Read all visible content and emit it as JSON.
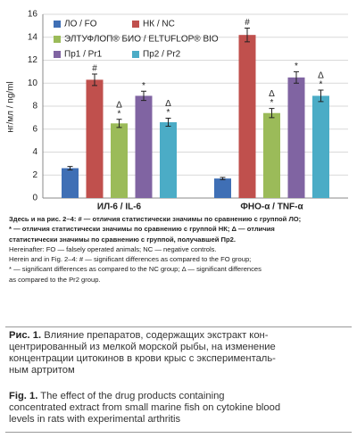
{
  "chart_data": {
    "type": "bar",
    "y_label": "нг/мл / ng/ml",
    "categories": [
      "ИЛ-6 / IL-6",
      "ФНО-α / TNF-α"
    ],
    "ylim": [
      0,
      16
    ],
    "yticks": [
      0,
      2,
      4,
      6,
      8,
      10,
      12,
      14,
      16
    ],
    "grid": true,
    "series": [
      {
        "name": "ЛО / FO",
        "color": "#3f6fb5",
        "values": [
          2.6,
          1.7
        ],
        "errors": [
          0.15,
          0.1
        ],
        "annotations": [
          [],
          []
        ]
      },
      {
        "name": "НК / NC",
        "color": "#c0504d",
        "values": [
          10.3,
          14.2
        ],
        "errors": [
          0.5,
          0.6
        ],
        "annotations": [
          [
            "#"
          ],
          [
            "#"
          ]
        ]
      },
      {
        "name": "ЭЛТУФЛОП® БИО / ELTUFLOP® BIO",
        "color": "#9bbb59",
        "values": [
          6.5,
          7.4
        ],
        "errors": [
          0.35,
          0.4
        ],
        "annotations": [
          [
            "Δ",
            "*"
          ],
          [
            "Δ",
            "*"
          ]
        ]
      },
      {
        "name": "Пр1 / Pr1",
        "color": "#8064a2",
        "values": [
          8.9,
          10.5
        ],
        "errors": [
          0.4,
          0.5
        ],
        "annotations": [
          [
            "*"
          ],
          [
            "*"
          ]
        ]
      },
      {
        "name": "Пр2 / Pr2",
        "color": "#4bacc6",
        "values": [
          6.6,
          8.9
        ],
        "errors": [
          0.35,
          0.5
        ],
        "annotations": [
          [
            "Δ",
            "*"
          ],
          [
            "Δ",
            "*"
          ]
        ]
      }
    ]
  },
  "notes_ru": [
    "Здесь и на рис. 2–4: # — отличия статистически значимы по сравнению с группой ЛО;",
    "* — отличия статистически значимы по сравнению с группой НК; Δ — отличия",
    "статистически значимы по сравнению с группой, получавшей Пр2."
  ],
  "notes_en": [
    "Hereinafter: FO — falsely operated animals; NC — negative controls.",
    "Herein and in Fig. 2–4: # — significant differences as compared to the FO group;",
    "* — significant differences as compared to the NC group; Δ — significant differences",
    "as compared to the Pr2 group."
  ],
  "caption_ru": {
    "label": "Рис. 1.",
    "lines": [
      " Влияние препаратов, содержащих экстракт кон-",
      "центрированный из мелкой морской рыбы, на изменение",
      "концентрации цитокинов в крови крыс с эксперименталь-",
      "ным артритом"
    ]
  },
  "caption_en": {
    "label": "Fig. 1.",
    "lines": [
      " The effect of the drug products containing",
      "concentrated extract from small marine fish on cytokine blood",
      "levels in rats with experimental arthritis"
    ]
  }
}
